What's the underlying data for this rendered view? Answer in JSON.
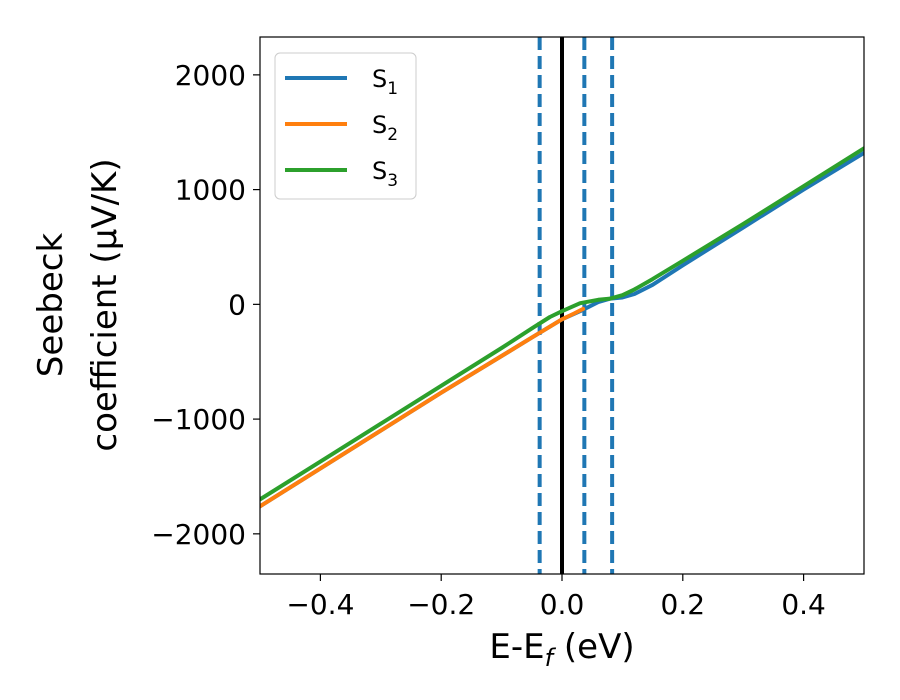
{
  "chart_data": {
    "type": "line",
    "xlabel": "E-E_f (eV)",
    "xlabel_main": "E-E",
    "xlabel_sub": "f",
    "xlabel_unit": " (eV)",
    "ylabel_line1": "Seebeck",
    "ylabel_line2": "coefficient  (μV/K)",
    "xlim": [
      -0.5,
      0.5
    ],
    "ylim": [
      -2350,
      2330
    ],
    "xticks": [
      -0.4,
      -0.2,
      0.0,
      0.2,
      0.4
    ],
    "xtick_labels": [
      "−0.4",
      "−0.2",
      "0.0",
      "0.2",
      "0.4"
    ],
    "yticks": [
      -2000,
      -1000,
      0,
      1000,
      2000
    ],
    "ytick_labels": [
      "−2000",
      "−1000",
      "0",
      "1000",
      "2000"
    ],
    "grid": false,
    "legend_position": "top-left",
    "series": [
      {
        "name": "S1",
        "label_main": "S",
        "label_sub": "1",
        "color": "#1f77b4",
        "points": [
          [
            -0.5,
            -1760
          ],
          [
            -0.4,
            -1430
          ],
          [
            -0.3,
            -1100
          ],
          [
            -0.2,
            -770
          ],
          [
            -0.1,
            -450
          ],
          [
            -0.05,
            -290
          ],
          [
            0.0,
            -130
          ],
          [
            0.03,
            -60
          ],
          [
            0.06,
            20
          ],
          [
            0.08,
            50
          ],
          [
            0.1,
            60
          ],
          [
            0.12,
            90
          ],
          [
            0.15,
            170
          ],
          [
            0.2,
            340
          ],
          [
            0.3,
            670
          ],
          [
            0.4,
            1000
          ],
          [
            0.5,
            1320
          ]
        ]
      },
      {
        "name": "S2",
        "label_main": "S",
        "label_sub": "2",
        "color": "#ff7f0e",
        "points": [
          [
            -0.5,
            -1760
          ],
          [
            -0.4,
            -1430
          ],
          [
            -0.3,
            -1100
          ],
          [
            -0.2,
            -770
          ],
          [
            -0.1,
            -450
          ],
          [
            -0.05,
            -290
          ],
          [
            0.0,
            -130
          ],
          [
            0.02,
            -80
          ],
          [
            0.035,
            -40
          ]
        ]
      },
      {
        "name": "S3",
        "label_main": "S",
        "label_sub": "3",
        "color": "#2ca02c",
        "points": [
          [
            -0.5,
            -1700
          ],
          [
            -0.4,
            -1370
          ],
          [
            -0.3,
            -1040
          ],
          [
            -0.2,
            -710
          ],
          [
            -0.1,
            -380
          ],
          [
            -0.05,
            -210
          ],
          [
            -0.02,
            -110
          ],
          [
            0.0,
            -60
          ],
          [
            0.03,
            10
          ],
          [
            0.06,
            40
          ],
          [
            0.08,
            50
          ],
          [
            0.1,
            80
          ],
          [
            0.12,
            130
          ],
          [
            0.15,
            220
          ],
          [
            0.2,
            380
          ],
          [
            0.3,
            700
          ],
          [
            0.4,
            1030
          ],
          [
            0.5,
            1360
          ]
        ]
      }
    ],
    "vlines": [
      {
        "x": 0.0,
        "style": "solid",
        "color": "#000000"
      },
      {
        "x": -0.037,
        "style": "dashed",
        "color": "#1f77b4"
      },
      {
        "x": 0.037,
        "style": "dashed",
        "color": "#1f77b4"
      },
      {
        "x": 0.083,
        "style": "dashed",
        "color": "#1f77b4"
      }
    ]
  }
}
